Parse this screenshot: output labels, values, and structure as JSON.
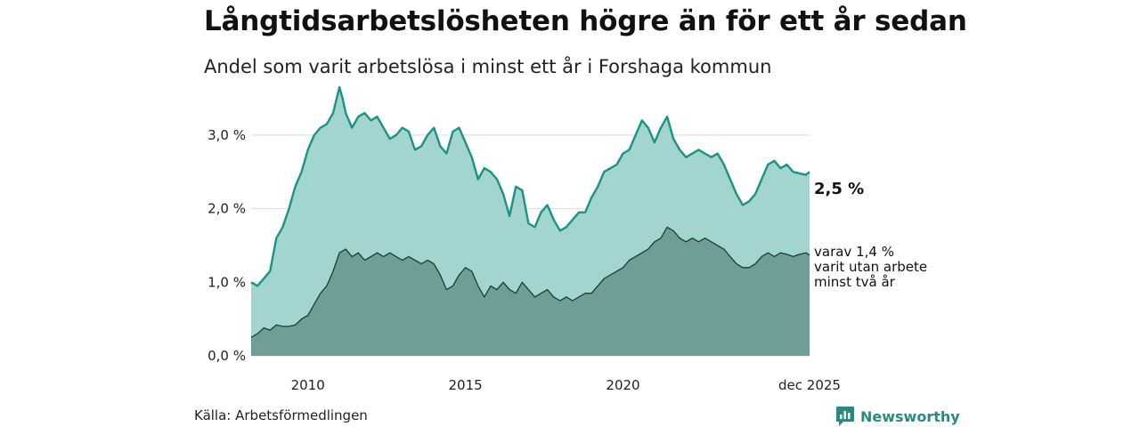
{
  "title": "Långtidsarbetslösheten högre än för ett år sedan",
  "subtitle": "Andel som varit arbetslösa i minst ett år i Forshaga kommun",
  "source": "Källa: Arbetsförmedlingen",
  "brand": "Newsworthy",
  "colors": {
    "area_total": "#a3d5d0",
    "line_total": "#1a9385",
    "area_long": "#6e9e97",
    "line_long": "#1e3a36",
    "grid": "#d9d9d9"
  },
  "chart_data": {
    "type": "area",
    "unit": "%",
    "ylim": [
      0,
      3.7
    ],
    "y_ticks": [
      {
        "value": 0,
        "label": "0,0 %"
      },
      {
        "value": 1,
        "label": "1,0 %"
      },
      {
        "value": 2,
        "label": "2,0 %"
      },
      {
        "value": 3,
        "label": "3,0 %"
      }
    ],
    "x_range": [
      2008.2,
      2025.92
    ],
    "x_ticks": [
      {
        "value": 2010,
        "label": "2010"
      },
      {
        "value": 2015,
        "label": "2015"
      },
      {
        "value": 2020,
        "label": "2020"
      },
      {
        "value": 2025.92,
        "label": "dec 2025"
      }
    ],
    "grid": true,
    "series": [
      {
        "name": "Arbetslösa minst ett år",
        "end_label": "2,5 %",
        "x": [
          2008.2,
          2008.4,
          2008.6,
          2008.8,
          2009.0,
          2009.2,
          2009.4,
          2009.6,
          2009.8,
          2010.0,
          2010.2,
          2010.4,
          2010.6,
          2010.8,
          2011.0,
          2011.1,
          2011.2,
          2011.4,
          2011.6,
          2011.8,
          2012.0,
          2012.2,
          2012.4,
          2012.6,
          2012.8,
          2013.0,
          2013.2,
          2013.4,
          2013.6,
          2013.8,
          2014.0,
          2014.2,
          2014.4,
          2014.6,
          2014.8,
          2015.0,
          2015.2,
          2015.4,
          2015.6,
          2015.8,
          2016.0,
          2016.2,
          2016.4,
          2016.6,
          2016.8,
          2017.0,
          2017.2,
          2017.4,
          2017.6,
          2017.8,
          2018.0,
          2018.2,
          2018.4,
          2018.6,
          2018.8,
          2019.0,
          2019.2,
          2019.4,
          2019.6,
          2019.8,
          2020.0,
          2020.2,
          2020.4,
          2020.6,
          2020.8,
          2021.0,
          2021.2,
          2021.4,
          2021.6,
          2021.8,
          2021.9,
          2022.0,
          2022.2,
          2022.4,
          2022.6,
          2022.8,
          2023.0,
          2023.2,
          2023.4,
          2023.6,
          2023.8,
          2024.0,
          2024.2,
          2024.4,
          2024.6,
          2024.8,
          2025.0,
          2025.2,
          2025.4,
          2025.6,
          2025.8,
          2025.92
        ],
        "values": [
          1.0,
          0.95,
          1.05,
          1.15,
          1.6,
          1.75,
          2.0,
          2.3,
          2.5,
          2.8,
          3.0,
          3.1,
          3.15,
          3.3,
          3.65,
          3.5,
          3.3,
          3.1,
          3.25,
          3.3,
          3.2,
          3.25,
          3.1,
          2.95,
          3.0,
          3.1,
          3.05,
          2.8,
          2.85,
          3.0,
          3.1,
          2.85,
          2.75,
          3.05,
          3.1,
          2.9,
          2.7,
          2.4,
          2.55,
          2.5,
          2.4,
          2.2,
          1.9,
          2.3,
          2.25,
          1.8,
          1.75,
          1.95,
          2.05,
          1.85,
          1.7,
          1.75,
          1.85,
          1.95,
          1.95,
          2.15,
          2.3,
          2.5,
          2.55,
          2.6,
          2.75,
          2.8,
          3.0,
          3.2,
          3.1,
          2.9,
          3.1,
          3.25,
          2.95,
          2.8,
          2.75,
          2.7,
          2.75,
          2.8,
          2.75,
          2.7,
          2.75,
          2.6,
          2.4,
          2.2,
          2.05,
          2.1,
          2.2,
          2.4,
          2.6,
          2.65,
          2.55,
          2.6,
          2.5,
          2.48,
          2.46,
          2.5
        ]
      },
      {
        "name": "varav utan arbete minst två år",
        "end_label": [
          "varav 1,4 %",
          "varit utan arbete",
          "minst två år"
        ],
        "x": [
          2008.2,
          2008.4,
          2008.6,
          2008.8,
          2009.0,
          2009.2,
          2009.4,
          2009.6,
          2009.8,
          2010.0,
          2010.2,
          2010.4,
          2010.6,
          2010.8,
          2011.0,
          2011.2,
          2011.4,
          2011.6,
          2011.8,
          2012.0,
          2012.2,
          2012.4,
          2012.6,
          2012.8,
          2013.0,
          2013.2,
          2013.4,
          2013.6,
          2013.8,
          2014.0,
          2014.2,
          2014.4,
          2014.6,
          2014.8,
          2015.0,
          2015.2,
          2015.4,
          2015.6,
          2015.8,
          2016.0,
          2016.2,
          2016.4,
          2016.6,
          2016.8,
          2017.0,
          2017.2,
          2017.4,
          2017.6,
          2017.8,
          2018.0,
          2018.2,
          2018.4,
          2018.6,
          2018.8,
          2019.0,
          2019.2,
          2019.4,
          2019.6,
          2019.8,
          2020.0,
          2020.2,
          2020.4,
          2020.6,
          2020.8,
          2021.0,
          2021.2,
          2021.4,
          2021.6,
          2021.8,
          2022.0,
          2022.2,
          2022.4,
          2022.6,
          2022.8,
          2023.0,
          2023.2,
          2023.4,
          2023.6,
          2023.8,
          2024.0,
          2024.2,
          2024.4,
          2024.6,
          2024.8,
          2025.0,
          2025.2,
          2025.4,
          2025.6,
          2025.8,
          2025.92
        ],
        "values": [
          0.25,
          0.3,
          0.38,
          0.35,
          0.42,
          0.4,
          0.4,
          0.42,
          0.5,
          0.55,
          0.7,
          0.85,
          0.95,
          1.15,
          1.4,
          1.45,
          1.35,
          1.4,
          1.3,
          1.35,
          1.4,
          1.35,
          1.4,
          1.35,
          1.3,
          1.35,
          1.3,
          1.25,
          1.3,
          1.25,
          1.1,
          0.9,
          0.95,
          1.1,
          1.2,
          1.15,
          0.95,
          0.8,
          0.95,
          0.9,
          1.0,
          0.9,
          0.85,
          1.0,
          0.9,
          0.8,
          0.85,
          0.9,
          0.8,
          0.75,
          0.8,
          0.75,
          0.8,
          0.85,
          0.85,
          0.95,
          1.05,
          1.1,
          1.15,
          1.2,
          1.3,
          1.35,
          1.4,
          1.45,
          1.55,
          1.6,
          1.75,
          1.7,
          1.6,
          1.55,
          1.6,
          1.55,
          1.6,
          1.55,
          1.5,
          1.45,
          1.35,
          1.25,
          1.2,
          1.2,
          1.25,
          1.35,
          1.4,
          1.35,
          1.4,
          1.38,
          1.35,
          1.38,
          1.4,
          1.37
        ]
      }
    ]
  }
}
